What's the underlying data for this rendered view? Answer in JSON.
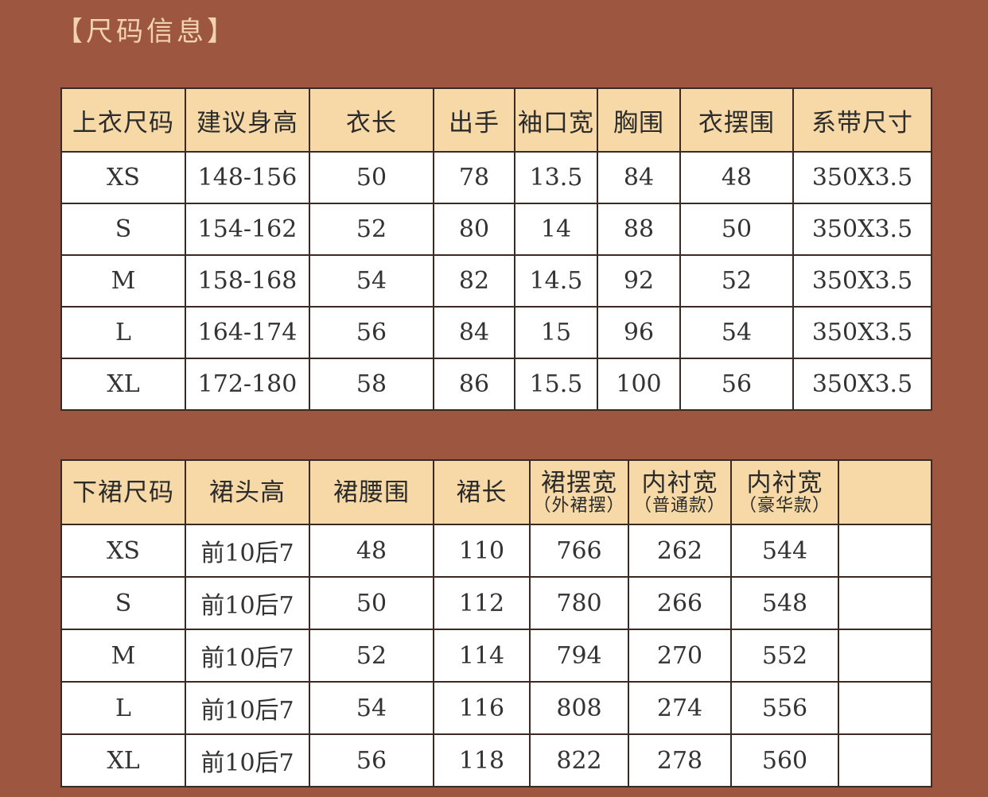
{
  "title": "【尺码信息】",
  "top_table": {
    "headers": [
      "上衣尺码",
      "建议身高",
      "衣长",
      "出手",
      "袖口宽",
      "胸围",
      "衣摆围",
      "系带尺寸"
    ],
    "rows": [
      [
        "XS",
        "148-156",
        "50",
        "78",
        "13.5",
        "84",
        "48",
        "350X3.5"
      ],
      [
        "S",
        "154-162",
        "52",
        "80",
        "14",
        "88",
        "50",
        "350X3.5"
      ],
      [
        "M",
        "158-168",
        "54",
        "82",
        "14.5",
        "92",
        "52",
        "350X3.5"
      ],
      [
        "L",
        "164-174",
        "56",
        "84",
        "15",
        "96",
        "54",
        "350X3.5"
      ],
      [
        "XL",
        "172-180",
        "58",
        "86",
        "15.5",
        "100",
        "56",
        "350X3.5"
      ]
    ]
  },
  "skirt_table": {
    "headers": [
      {
        "main": "下裙尺码",
        "sub": ""
      },
      {
        "main": "裙头高",
        "sub": ""
      },
      {
        "main": "裙腰围",
        "sub": ""
      },
      {
        "main": "裙长",
        "sub": ""
      },
      {
        "main": "裙摆宽",
        "sub": "（外裙摆）"
      },
      {
        "main": "内衬宽",
        "sub": "（普通款）"
      },
      {
        "main": "内衬宽",
        "sub": "（豪华款）"
      },
      {
        "main": "",
        "sub": ""
      }
    ],
    "rows": [
      [
        "XS",
        "前10后7",
        "48",
        "110",
        "766",
        "262",
        "544",
        ""
      ],
      [
        "S",
        "前10后7",
        "50",
        "112",
        "780",
        "266",
        "548",
        ""
      ],
      [
        "M",
        "前10后7",
        "52",
        "114",
        "794",
        "270",
        "552",
        ""
      ],
      [
        "L",
        "前10后7",
        "54",
        "116",
        "808",
        "274",
        "556",
        ""
      ],
      [
        "XL",
        "前10后7",
        "56",
        "118",
        "822",
        "278",
        "560",
        ""
      ]
    ]
  },
  "colors": {
    "background": "#9d5741",
    "header": "#f6d9a7",
    "title": "#f3d2b0"
  }
}
